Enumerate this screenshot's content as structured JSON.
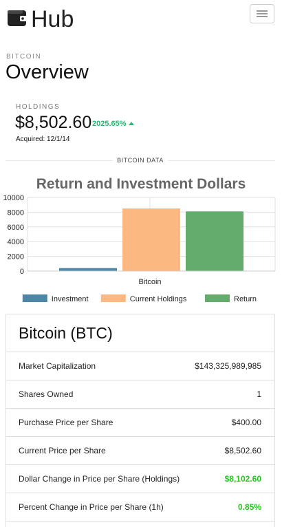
{
  "app": {
    "title": "Hub",
    "logo_icon": "wallet-icon"
  },
  "header": {
    "section": "BITCOIN",
    "title": "Overview"
  },
  "holdings": {
    "label": "HOLDINGS",
    "value": "$8,502.60",
    "change": "2025.65%",
    "change_direction": "up",
    "acquired": "Acquired: 12/1/14"
  },
  "divider": {
    "label": "BITCOIN DATA"
  },
  "chart_data": {
    "type": "bar",
    "title": "Return and Investment Dollars",
    "categories": [
      "Bitcoin"
    ],
    "series": [
      {
        "name": "Investment",
        "values": [
          400
        ],
        "color": "#4d87a6"
      },
      {
        "name": "Current Holdings",
        "values": [
          8502.6
        ],
        "color": "#fbb981"
      },
      {
        "name": "Return",
        "values": [
          8102.6
        ],
        "color": "#64ab6e"
      }
    ],
    "ylim": [
      0,
      10000
    ],
    "yticks": [
      0,
      2000,
      4000,
      6000,
      8000,
      10000
    ],
    "grid": true,
    "legend": "bottom"
  },
  "card": {
    "title": "Bitcoin (BTC)",
    "rows": [
      {
        "label": "Market Capitalization",
        "value": "$143,325,989,985"
      },
      {
        "label": "Shares Owned",
        "value": "1"
      },
      {
        "label": "Purchase Price per Share",
        "value": "$400.00"
      },
      {
        "label": "Current Price per Share",
        "value": "$8,502.60"
      },
      {
        "label": "Dollar Change in Price per Share (Holdings)",
        "value": "$8,102.60",
        "highlight": "green"
      },
      {
        "label": "Percent Change in Price per Share (1h)",
        "value": "0.85%",
        "highlight": "green"
      }
    ]
  }
}
